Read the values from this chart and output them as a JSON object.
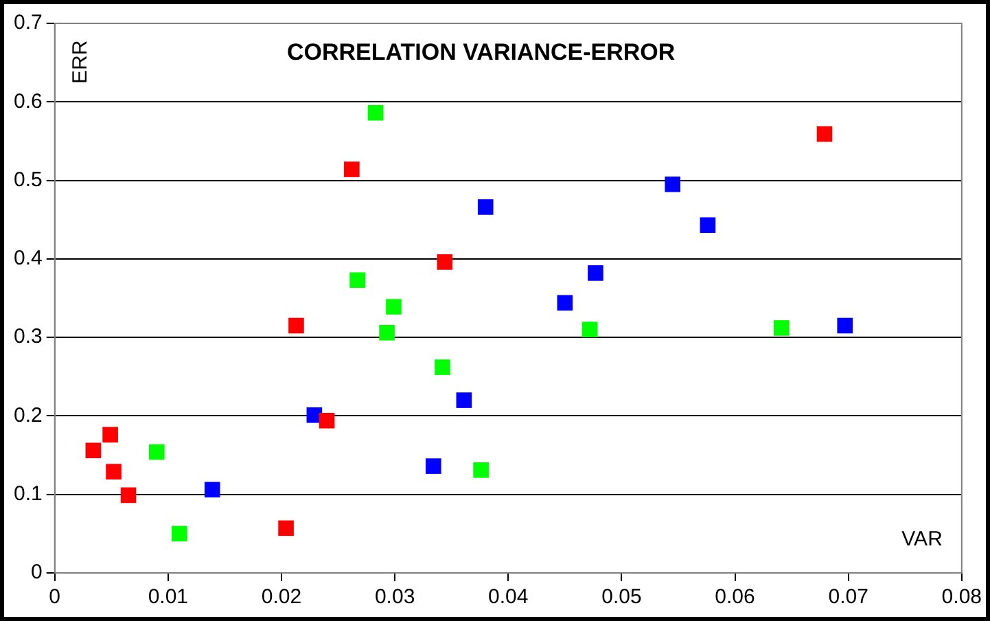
{
  "chart_data": {
    "type": "scatter",
    "title": "CORRELATION VARIANCE-ERROR",
    "xlabel": "VAR",
    "ylabel": "ERR",
    "series": [
      {
        "color": "#ff0000",
        "x": [
          0.0034,
          0.0049,
          0.0052,
          0.0065,
          0.0204,
          0.0213,
          0.024,
          0.0262,
          0.0344,
          0.0679
        ],
        "values": [
          0.156,
          0.176,
          0.129,
          0.099,
          0.057,
          0.315,
          0.194,
          0.514,
          0.396,
          0.559
        ]
      },
      {
        "color": "#00ff00",
        "x": [
          0.009,
          0.011,
          0.0283,
          0.0267,
          0.0299,
          0.0293,
          0.0342,
          0.0376,
          0.0472,
          0.0641
        ],
        "values": [
          0.154,
          0.05,
          0.586,
          0.373,
          0.339,
          0.306,
          0.262,
          0.131,
          0.31,
          0.312
        ]
      },
      {
        "color": "#0000ff",
        "x": [
          0.0139,
          0.0229,
          0.0334,
          0.0361,
          0.038,
          0.045,
          0.0477,
          0.0545,
          0.0576,
          0.0697
        ],
        "values": [
          0.106,
          0.201,
          0.136,
          0.22,
          0.466,
          0.344,
          0.382,
          0.495,
          0.443,
          0.315
        ]
      }
    ],
    "xlim": [
      0,
      0.08
    ],
    "xticks": [
      0,
      0.01,
      0.02,
      0.03,
      0.04,
      0.05,
      0.06,
      0.07,
      0.08
    ],
    "ylim": [
      0,
      0.7
    ],
    "yticks": [
      0,
      0.1,
      0.2,
      0.3,
      0.4,
      0.5,
      0.6,
      0.7
    ],
    "grid": "y",
    "legend": false,
    "marker": "square"
  }
}
